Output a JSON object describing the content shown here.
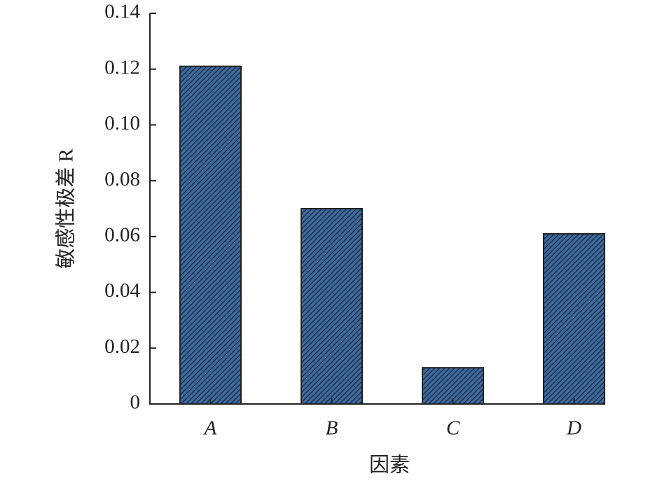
{
  "chart_data": {
    "type": "bar",
    "xlabel": "因素",
    "ylabel": "敏感性极差 R",
    "categories": [
      "A",
      "B",
      "C",
      "D"
    ],
    "values": [
      0.121,
      0.07,
      0.013,
      0.061
    ],
    "color": "#2f5a8a",
    "ylim": [
      0,
      0.14
    ],
    "yticks": [
      0,
      0.02,
      0.04,
      0.06,
      0.08,
      {
        "value": 0.1,
        "label": "0.10"
      },
      0.12,
      0.14
    ]
  }
}
